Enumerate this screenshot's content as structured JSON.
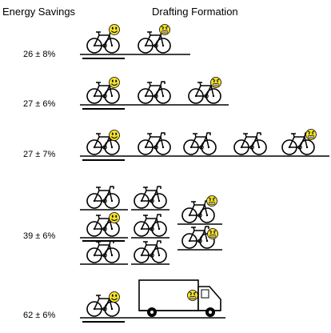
{
  "headers": {
    "left": "Energy Savings",
    "right": "Drafting Formation"
  },
  "rows": [
    {
      "saving": "26 ± 8%"
    },
    {
      "saving": "27 ± 6%"
    },
    {
      "saving": "27 ± 7%"
    },
    {
      "saving": "39 ± 6%"
    },
    {
      "saving": "62 ± 6%"
    }
  ],
  "colors": {
    "smiley_face": "#f3df2a",
    "grumpy_face": "#f3df2a",
    "ink": "#000000"
  }
}
